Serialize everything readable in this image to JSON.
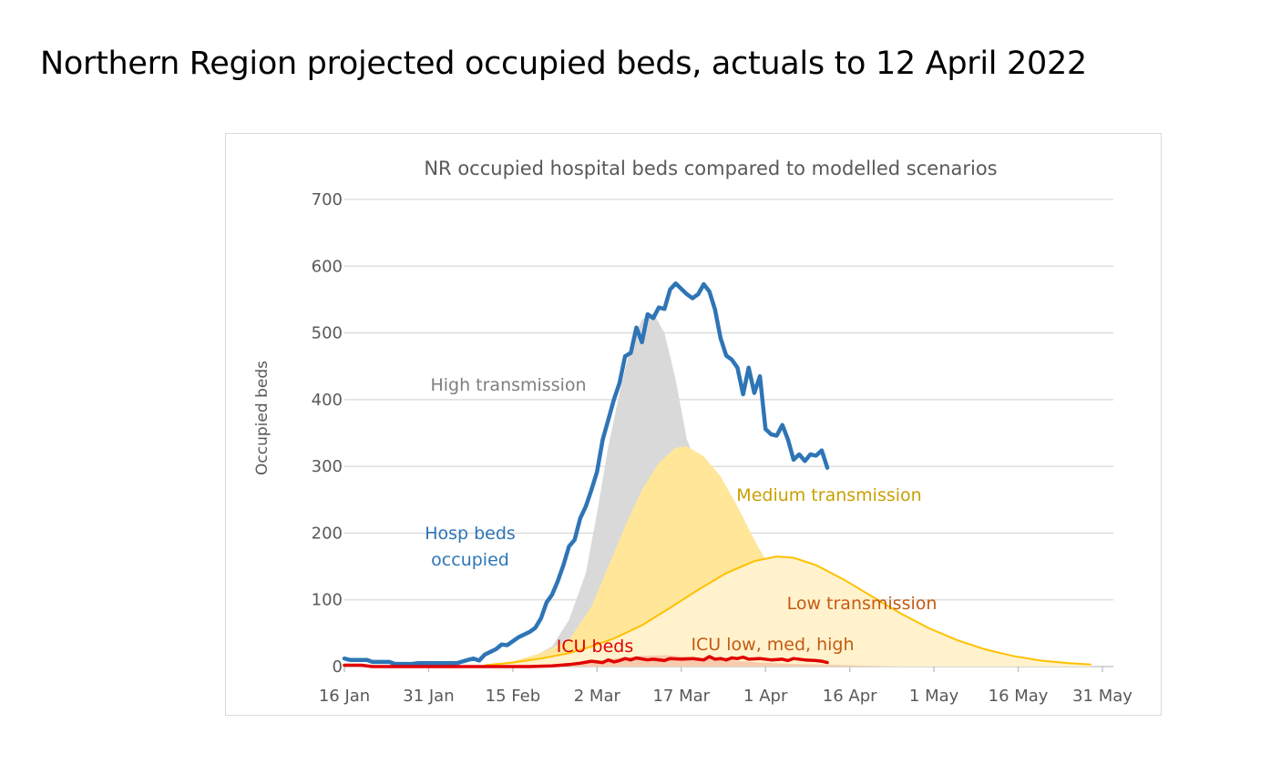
{
  "slide": {
    "title": "Northern Region projected occupied beds, actuals to 12 April 2022"
  },
  "chart_data": {
    "type": "area",
    "title": "NR occupied hospital beds compared to modelled scenarios",
    "xlabel": "",
    "ylabel": "Occupied beds",
    "x_axis": {
      "type": "date",
      "range": [
        "2022-01-16",
        "2022-05-31"
      ],
      "ticks": [
        "16 Jan",
        "31 Jan",
        "15 Feb",
        "2 Mar",
        "17 Mar",
        "1 Apr",
        "16 Apr",
        "1 May",
        "16 May",
        "31 May"
      ],
      "tick_dates": [
        "2022-01-16",
        "2022-01-31",
        "2022-02-15",
        "2022-03-02",
        "2022-03-17",
        "2022-04-01",
        "2022-04-16",
        "2022-05-01",
        "2022-05-16",
        "2022-05-31"
      ]
    },
    "y_axis": {
      "range": [
        0,
        700
      ],
      "ticks": [
        0,
        100,
        200,
        300,
        400,
        500,
        600,
        700
      ]
    },
    "grid": true,
    "legend": "none",
    "annotations": [
      {
        "text": "High transmission",
        "color": "#7f7f7f"
      },
      {
        "text": "Medium transmission",
        "color": "#c9a000"
      },
      {
        "text": "Low transmission",
        "color": "#c55a11"
      },
      {
        "text": "Hosp beds",
        "color": "#2e75b6"
      },
      {
        "text": "occupied",
        "color": "#2e75b6"
      },
      {
        "text": "ICU beds",
        "color": "#e00000"
      },
      {
        "text": "ICU low, med, high",
        "color": "#c55a11"
      }
    ],
    "series": [
      {
        "name": "High transmission",
        "kind": "area",
        "fill": "#d9d9d9",
        "points": [
          [
            "2022-02-14",
            2
          ],
          [
            "2022-02-18",
            12
          ],
          [
            "2022-02-22",
            30
          ],
          [
            "2022-02-25",
            70
          ],
          [
            "2022-02-28",
            140
          ],
          [
            "2022-03-02",
            230
          ],
          [
            "2022-03-04",
            330
          ],
          [
            "2022-03-06",
            410
          ],
          [
            "2022-03-08",
            480
          ],
          [
            "2022-03-10",
            520
          ],
          [
            "2022-03-12",
            530
          ],
          [
            "2022-03-14",
            500
          ],
          [
            "2022-03-16",
            430
          ],
          [
            "2022-03-18",
            340
          ],
          [
            "2022-03-19",
            320
          ]
        ]
      },
      {
        "name": "Medium transmission",
        "kind": "area",
        "fill": "#ffe699",
        "points": [
          [
            "2022-02-10",
            2
          ],
          [
            "2022-02-15",
            8
          ],
          [
            "2022-02-20",
            20
          ],
          [
            "2022-02-25",
            40
          ],
          [
            "2022-03-01",
            90
          ],
          [
            "2022-03-04",
            150
          ],
          [
            "2022-03-07",
            210
          ],
          [
            "2022-03-10",
            265
          ],
          [
            "2022-03-13",
            305
          ],
          [
            "2022-03-16",
            328
          ],
          [
            "2022-03-18",
            330
          ],
          [
            "2022-03-21",
            315
          ],
          [
            "2022-03-24",
            285
          ],
          [
            "2022-03-27",
            240
          ],
          [
            "2022-03-30",
            190
          ],
          [
            "2022-04-01",
            160
          ],
          [
            "2022-04-04",
            110
          ],
          [
            "2022-04-07",
            70
          ],
          [
            "2022-04-10",
            40
          ],
          [
            "2022-04-14",
            20
          ],
          [
            "2022-04-18",
            8
          ],
          [
            "2022-04-25",
            2
          ]
        ]
      },
      {
        "name": "Low transmission",
        "kind": "area",
        "fill": "#fff2cc",
        "stroke": "#ffc000",
        "points": [
          [
            "2022-02-10",
            2
          ],
          [
            "2022-02-15",
            6
          ],
          [
            "2022-02-20",
            12
          ],
          [
            "2022-02-25",
            20
          ],
          [
            "2022-03-01",
            30
          ],
          [
            "2022-03-05",
            42
          ],
          [
            "2022-03-10",
            62
          ],
          [
            "2022-03-15",
            88
          ],
          [
            "2022-03-20",
            115
          ],
          [
            "2022-03-25",
            140
          ],
          [
            "2022-03-30",
            158
          ],
          [
            "2022-04-03",
            165
          ],
          [
            "2022-04-06",
            163
          ],
          [
            "2022-04-10",
            152
          ],
          [
            "2022-04-15",
            130
          ],
          [
            "2022-04-20",
            105
          ],
          [
            "2022-04-25",
            80
          ],
          [
            "2022-04-30",
            58
          ],
          [
            "2022-05-05",
            40
          ],
          [
            "2022-05-10",
            26
          ],
          [
            "2022-05-15",
            16
          ],
          [
            "2022-05-20",
            9
          ],
          [
            "2022-05-25",
            5
          ],
          [
            "2022-05-29",
            3
          ]
        ]
      },
      {
        "name": "Hosp beds occupied",
        "kind": "line",
        "color": "#2e75b6",
        "points": [
          [
            "2022-01-16",
            12
          ],
          [
            "2022-01-17",
            10
          ],
          [
            "2022-01-20",
            10
          ],
          [
            "2022-01-21",
            7
          ],
          [
            "2022-01-24",
            7
          ],
          [
            "2022-01-25",
            4
          ],
          [
            "2022-01-28",
            4
          ],
          [
            "2022-01-29",
            5
          ],
          [
            "2022-02-05",
            5
          ],
          [
            "2022-02-07",
            10
          ],
          [
            "2022-02-08",
            12
          ],
          [
            "2022-02-09",
            9
          ],
          [
            "2022-02-10",
            18
          ],
          [
            "2022-02-12",
            26
          ],
          [
            "2022-02-13",
            33
          ],
          [
            "2022-02-14",
            32
          ],
          [
            "2022-02-16",
            44
          ],
          [
            "2022-02-18",
            52
          ],
          [
            "2022-02-19",
            58
          ],
          [
            "2022-02-20",
            72
          ],
          [
            "2022-02-21",
            96
          ],
          [
            "2022-02-22",
            108
          ],
          [
            "2022-02-23",
            128
          ],
          [
            "2022-02-24",
            152
          ],
          [
            "2022-02-25",
            180
          ],
          [
            "2022-02-26",
            190
          ],
          [
            "2022-02-27",
            222
          ],
          [
            "2022-02-28",
            240
          ],
          [
            "2022-03-01",
            265
          ],
          [
            "2022-03-02",
            292
          ],
          [
            "2022-03-03",
            340
          ],
          [
            "2022-03-04",
            370
          ],
          [
            "2022-03-05",
            400
          ],
          [
            "2022-03-06",
            425
          ],
          [
            "2022-03-07",
            465
          ],
          [
            "2022-03-08",
            470
          ],
          [
            "2022-03-09",
            508
          ],
          [
            "2022-03-10",
            486
          ],
          [
            "2022-03-11",
            528
          ],
          [
            "2022-03-12",
            522
          ],
          [
            "2022-03-13",
            538
          ],
          [
            "2022-03-14",
            536
          ],
          [
            "2022-03-15",
            565
          ],
          [
            "2022-03-16",
            574
          ],
          [
            "2022-03-17",
            566
          ],
          [
            "2022-03-18",
            558
          ],
          [
            "2022-03-19",
            552
          ],
          [
            "2022-03-20",
            558
          ],
          [
            "2022-03-21",
            573
          ],
          [
            "2022-03-22",
            562
          ],
          [
            "2022-03-23",
            535
          ],
          [
            "2022-03-24",
            492
          ],
          [
            "2022-03-25",
            466
          ],
          [
            "2022-03-26",
            460
          ],
          [
            "2022-03-27",
            448
          ],
          [
            "2022-03-28",
            408
          ],
          [
            "2022-03-29",
            448
          ],
          [
            "2022-03-30",
            410
          ],
          [
            "2022-03-31",
            435
          ],
          [
            "2022-04-01",
            356
          ],
          [
            "2022-04-02",
            348
          ],
          [
            "2022-04-03",
            346
          ],
          [
            "2022-04-04",
            362
          ],
          [
            "2022-04-05",
            340
          ],
          [
            "2022-04-06",
            310
          ],
          [
            "2022-04-07",
            318
          ],
          [
            "2022-04-08",
            308
          ],
          [
            "2022-04-09",
            318
          ],
          [
            "2022-04-10",
            316
          ],
          [
            "2022-04-11",
            324
          ],
          [
            "2022-04-12",
            298
          ]
        ]
      },
      {
        "name": "ICU beds",
        "kind": "line",
        "color": "#e00000",
        "points": [
          [
            "2022-01-16",
            2
          ],
          [
            "2022-01-19",
            2
          ],
          [
            "2022-01-21",
            0
          ],
          [
            "2022-02-18",
            0
          ],
          [
            "2022-02-22",
            1
          ],
          [
            "2022-02-25",
            3
          ],
          [
            "2022-02-27",
            5
          ],
          [
            "2022-03-01",
            8
          ],
          [
            "2022-03-03",
            6
          ],
          [
            "2022-03-04",
            10
          ],
          [
            "2022-03-05",
            7
          ],
          [
            "2022-03-06",
            9
          ],
          [
            "2022-03-07",
            12
          ],
          [
            "2022-03-08",
            10
          ],
          [
            "2022-03-09",
            13
          ],
          [
            "2022-03-11",
            10
          ],
          [
            "2022-03-12",
            11
          ],
          [
            "2022-03-14",
            9
          ],
          [
            "2022-03-15",
            12
          ],
          [
            "2022-03-17",
            11
          ],
          [
            "2022-03-19",
            12
          ],
          [
            "2022-03-21",
            10
          ],
          [
            "2022-03-22",
            15
          ],
          [
            "2022-03-23",
            11
          ],
          [
            "2022-03-24",
            12
          ],
          [
            "2022-03-25",
            10
          ],
          [
            "2022-03-26",
            13
          ],
          [
            "2022-03-27",
            12
          ],
          [
            "2022-03-28",
            14
          ],
          [
            "2022-03-29",
            11
          ],
          [
            "2022-03-31",
            12
          ],
          [
            "2022-04-02",
            10
          ],
          [
            "2022-04-04",
            11
          ],
          [
            "2022-04-05",
            9
          ],
          [
            "2022-04-06",
            12
          ],
          [
            "2022-04-08",
            10
          ],
          [
            "2022-04-10",
            9
          ],
          [
            "2022-04-11",
            8
          ],
          [
            "2022-04-12",
            6
          ]
        ]
      },
      {
        "name": "ICU low, med, high",
        "kind": "area",
        "fill": "#f8cbad",
        "points": [
          [
            "2022-02-18",
            0
          ],
          [
            "2022-02-25",
            3
          ],
          [
            "2022-03-02",
            8
          ],
          [
            "2022-03-06",
            13
          ],
          [
            "2022-03-10",
            16
          ],
          [
            "2022-03-14",
            17
          ],
          [
            "2022-03-18",
            15
          ],
          [
            "2022-03-22",
            12
          ],
          [
            "2022-03-26",
            9
          ],
          [
            "2022-03-31",
            6
          ],
          [
            "2022-04-06",
            4
          ],
          [
            "2022-04-15",
            2
          ],
          [
            "2022-04-25",
            0
          ]
        ]
      }
    ]
  }
}
